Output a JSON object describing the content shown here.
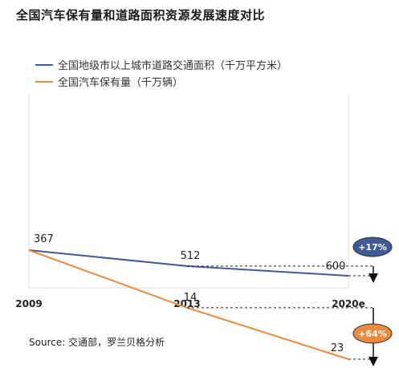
{
  "title": "全国汽车保有量和道路面积资源发展速度对比",
  "legend": [
    {
      "label": "全国地级市以上城市道路交通面积（千万平方米）",
      "color": "#3f5a94"
    },
    {
      "label": "全国汽车保有量（千万辆）",
      "color": "#ed8b3d"
    }
  ],
  "source": "Source: 交通部，罗兰贝格分析",
  "chart_data": {
    "type": "line",
    "x": [
      "2009",
      "2013",
      "2020e"
    ],
    "title": "全国汽车保有量和道路面积资源发展速度对比",
    "xlabel": "",
    "ylabel": "",
    "grid": false,
    "legend_position": "top-left",
    "series": [
      {
        "name": "全国地级市以上城市道路交通面积（千万平方米）",
        "color": "#3f5a94",
        "values": [
          367,
          512,
          600
        ],
        "labels": [
          "367",
          "512",
          "600"
        ]
      },
      {
        "name": "全国汽车保有量（千万辆）",
        "color": "#ed8b3d",
        "values": [
          3.9,
          14,
          23
        ],
        "labels": [
          "",
          "14",
          "23"
        ]
      }
    ],
    "annotations": [
      {
        "text": "+64%",
        "series": "全国汽车保有量（千万辆）",
        "fill": "#ed8b3d"
      },
      {
        "text": "+17%",
        "series": "全国地级市以上城市道路交通面积（千万平方米）",
        "fill": "#3f5a94"
      }
    ]
  }
}
